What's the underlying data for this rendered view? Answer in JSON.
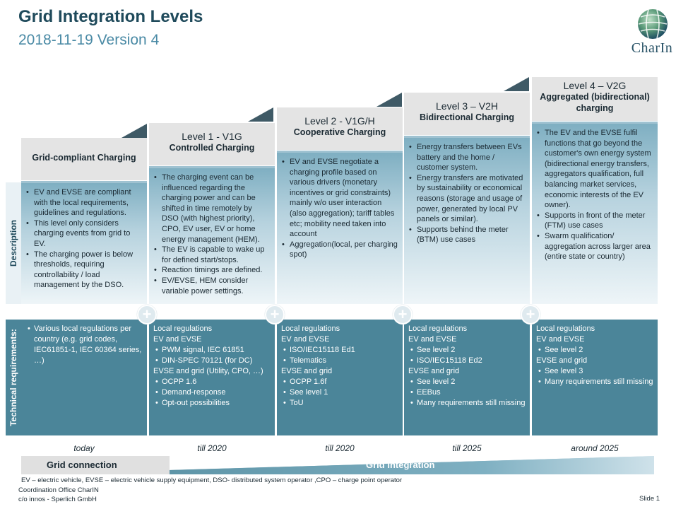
{
  "header": {
    "title": "Grid Integration Levels",
    "subtitle": "2018-11-19 Version 4"
  },
  "logo": {
    "text": "CharIn",
    "icon": "globe-icon"
  },
  "side_labels": {
    "description": "Description",
    "technical": "Technical requirements:"
  },
  "colors": {
    "dark_teal": "#4b8599",
    "light_gray": "#e4e4e4",
    "title_blue": "#1f4a5b",
    "subtitle_blue": "#4a8aa5"
  },
  "levels": [
    {
      "level": "",
      "name": "Grid-compliant Charging",
      "description": [
        "EV and EVSE are compliant with the local requirements, guidelines and regulations.",
        "This level only considers charging events from grid to EV.",
        "The charging power is below thresholds, requiring controllability / load management by the DSO."
      ],
      "technical": [
        {
          "text": "Various local regulations per country (e.g. grid codes, IEC61851-1, IEC 60364 series, …)",
          "bullet": true
        }
      ],
      "timeframe": "today"
    },
    {
      "level": "Level 1 - V1G",
      "name": "Controlled Charging",
      "description": [
        "The charging event can be influenced regarding the charging power and can be shifted in time remotely by DSO (with highest priority), CPO, EV user, EV or home energy management (HEM).",
        "The EV is capable to wake up for defined start/stops.",
        "Reaction timings are defined.",
        "EV/EVSE, HEM consider variable power settings."
      ],
      "technical": [
        {
          "text": "Local regulations",
          "bullet": false
        },
        {
          "text": "EV and EVSE",
          "bullet": false
        },
        {
          "text": "PWM signal, IEC 61851",
          "bullet": true
        },
        {
          "text": "DIN-SPEC 70121 (for DC)",
          "bullet": true
        },
        {
          "text": "EVSE and grid (Utility, CPO, …)",
          "bullet": false
        },
        {
          "text": "OCPP 1.6",
          "bullet": true
        },
        {
          "text": "Demand-response",
          "bullet": true
        },
        {
          "text": "Opt-out possibilities",
          "bullet": true
        }
      ],
      "timeframe": "till 2020"
    },
    {
      "level": "Level 2 - V1G/H",
      "name": "Cooperative Charging",
      "description": [
        "EV and EVSE negotiate a charging profile based on various drivers (monetary incentives or grid constraints) mainly w/o user interaction (also aggregation); tariff tables etc; mobility need taken into account",
        "Aggregation(local, per charging spot)"
      ],
      "technical": [
        {
          "text": "Local regulations",
          "bullet": false
        },
        {
          "text": "EV and EVSE",
          "bullet": false
        },
        {
          "text": "ISO/IEC15118 Ed1",
          "bullet": true
        },
        {
          "text": "Telematics",
          "bullet": true
        },
        {
          "text": "EVSE and grid",
          "bullet": false
        },
        {
          "text": "OCPP 1.6f",
          "bullet": true
        },
        {
          "text": "See level 1",
          "bullet": true
        },
        {
          "text": "ToU",
          "bullet": true
        }
      ],
      "timeframe": "till 2020"
    },
    {
      "level": "Level 3 – V2H",
      "name": "Bidirectional Charging",
      "description": [
        "Energy transfers between EVs battery and the home / customer system.",
        "Energy transfers are motivated by sustainability or economical reasons (storage and usage of power, generated by local PV panels or similar).",
        "Supports behind the meter (BTM) use cases"
      ],
      "technical": [
        {
          "text": "Local regulations",
          "bullet": false
        },
        {
          "text": "EV and EVSE",
          "bullet": false
        },
        {
          "text": "See level 2",
          "bullet": true
        },
        {
          "text": "ISO/IEC15118 Ed2",
          "bullet": true
        },
        {
          "text": "EVSE and grid",
          "bullet": false
        },
        {
          "text": "See level 2",
          "bullet": true
        },
        {
          "text": "EEBus",
          "bullet": true
        },
        {
          "text": "Many requirements still missing",
          "bullet": true
        }
      ],
      "timeframe": "till 2025"
    },
    {
      "level": "Level 4 – V2G",
      "name": "Aggregated (bidirectional) charging",
      "description": [
        "The EV and the EVSE fulfil functions that go beyond the customer's own energy system (bidirectional energy transfers, aggregators qualification, full balancing market services, economic interests of the EV owner).",
        "Supports in front of the meter (FTM) use cases",
        "Swarm qualification/ aggregation across larger area (entire state or country)"
      ],
      "technical": [
        {
          "text": "Local regulations",
          "bullet": false
        },
        {
          "text": "EV and EVSE",
          "bullet": false
        },
        {
          "text": "See level 2",
          "bullet": true
        },
        {
          "text": "EVSE and grid",
          "bullet": false
        },
        {
          "text": "See level 3",
          "bullet": true
        },
        {
          "text": "Many requirements still missing",
          "bullet": true
        }
      ],
      "timeframe": "around 2025"
    }
  ],
  "bottom_bar": {
    "grid_connection": "Grid connection",
    "grid_integration": "Grid integration"
  },
  "footer": {
    "abbreviations": "EV – electric vehicle, EVSE – electric vehicle supply equipment, DSO- distributed system operator ,CPO – charge point operator",
    "office": "Coordination Office CharIN",
    "address": "c/o innos - Sperlich GmbH",
    "slide": "Slide 1"
  }
}
